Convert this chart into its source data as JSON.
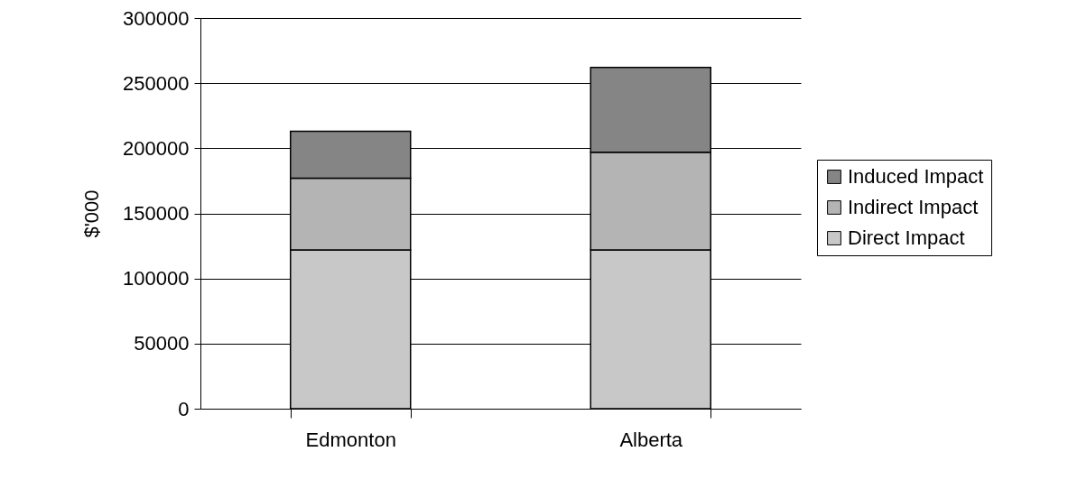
{
  "chart_data": {
    "type": "bar",
    "stacked": true,
    "ylabel": "$'000",
    "categories": [
      "Edmonton",
      "Alberta"
    ],
    "series": [
      {
        "name": "Direct Impact",
        "color": "#c8c8c8",
        "values": [
          122000,
          122000
        ]
      },
      {
        "name": "Indirect Impact",
        "color": "#b4b4b4",
        "values": [
          55000,
          75000
        ]
      },
      {
        "name": "Induced Impact",
        "color": "#858585",
        "values": [
          36000,
          65000
        ]
      }
    ],
    "ylim": [
      0,
      300000
    ],
    "yticks": [
      0,
      50000,
      100000,
      150000,
      200000,
      250000,
      300000
    ],
    "grid": "y",
    "legend": "right"
  }
}
